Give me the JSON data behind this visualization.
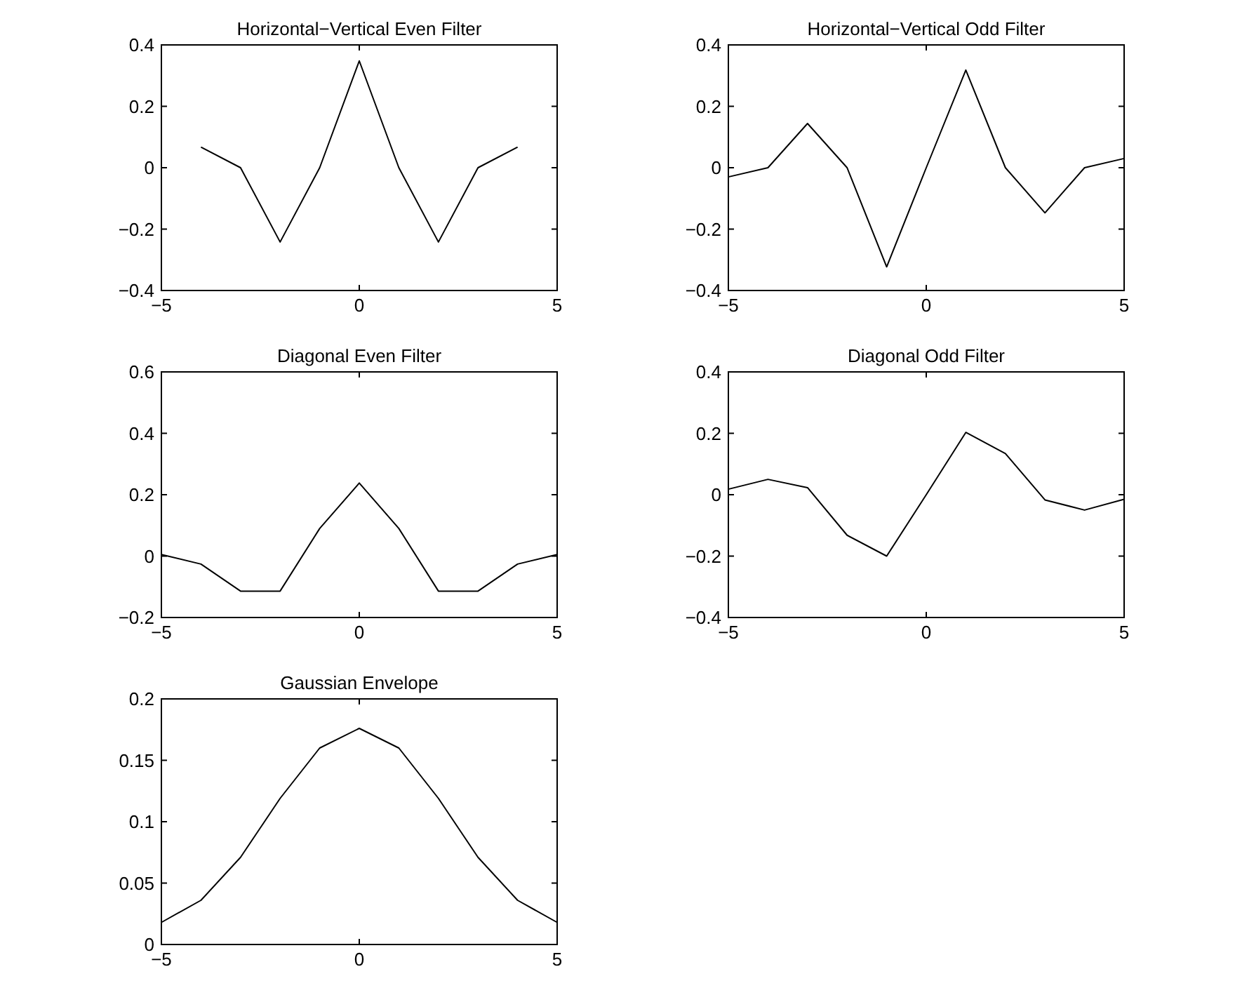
{
  "chart_data": [
    {
      "type": "line",
      "title": "Horizontal−Vertical Even Filter",
      "x": [
        -4,
        -3,
        -2,
        -1,
        0,
        1,
        2,
        3,
        4
      ],
      "series": [
        {
          "color": "#000000",
          "values": [
            0.067,
            0,
            -0.242,
            0,
            0.348,
            0,
            -0.242,
            0,
            0.067
          ]
        }
      ],
      "xlim": [
        -5,
        5
      ],
      "ylim": [
        -0.4,
        0.4
      ],
      "xticks": [
        -5,
        0,
        5
      ],
      "yticks": [
        -0.4,
        -0.2,
        0,
        0.2,
        0.4
      ]
    },
    {
      "type": "line",
      "title": "Horizontal−Vertical Odd Filter",
      "x": [
        -5,
        -4,
        -3,
        -2,
        -1,
        0,
        1,
        2,
        3,
        4,
        5
      ],
      "series": [
        {
          "color": "#000000",
          "values": [
            -0.03,
            0,
            0.144,
            0,
            -0.323,
            0,
            0.318,
            0,
            -0.147,
            0,
            0.03
          ]
        }
      ],
      "xlim": [
        -5,
        5
      ],
      "ylim": [
        -0.4,
        0.4
      ],
      "xticks": [
        -5,
        0,
        5
      ],
      "yticks": [
        -0.4,
        -0.2,
        0,
        0.2,
        0.4
      ]
    },
    {
      "type": "line",
      "title": "Diagonal Even Filter",
      "x": [
        -5,
        -4,
        -3,
        -2,
        -1,
        0,
        1,
        2,
        3,
        4,
        5
      ],
      "series": [
        {
          "color": "#000000",
          "values": [
            0.005,
            -0.026,
            -0.114,
            -0.114,
            0.09,
            0.238,
            0.09,
            -0.114,
            -0.114,
            -0.026,
            0.005
          ]
        }
      ],
      "xlim": [
        -5,
        5
      ],
      "ylim": [
        -0.2,
        0.6
      ],
      "xticks": [
        -5,
        0,
        5
      ],
      "yticks": [
        -0.2,
        0,
        0.2,
        0.4,
        0.6
      ]
    },
    {
      "type": "line",
      "title": "Diagonal Odd Filter",
      "x": [
        -5,
        -4,
        -3,
        -2,
        -1,
        0,
        1,
        2,
        3,
        4,
        5
      ],
      "series": [
        {
          "color": "#000000",
          "values": [
            0.018,
            0.05,
            0.023,
            -0.132,
            -0.2,
            0,
            0.203,
            0.134,
            -0.017,
            -0.05,
            -0.015
          ]
        }
      ],
      "xlim": [
        -5,
        5
      ],
      "ylim": [
        -0.4,
        0.4
      ],
      "xticks": [
        -5,
        0,
        5
      ],
      "yticks": [
        -0.4,
        -0.2,
        0,
        0.2,
        0.4
      ]
    },
    {
      "type": "line",
      "title": "Gaussian Envelope",
      "x": [
        -5,
        -4,
        -3,
        -2,
        -1,
        0,
        1,
        2,
        3,
        4,
        5
      ],
      "series": [
        {
          "color": "#000000",
          "values": [
            0.018,
            0.036,
            0.071,
            0.119,
            0.16,
            0.176,
            0.16,
            0.119,
            0.071,
            0.036,
            0.018
          ]
        }
      ],
      "xlim": [
        -5,
        5
      ],
      "ylim": [
        0,
        0.2
      ],
      "xticks": [
        -5,
        0,
        5
      ],
      "yticks": [
        0,
        0.05,
        0.1,
        0.15,
        0.2
      ]
    }
  ]
}
